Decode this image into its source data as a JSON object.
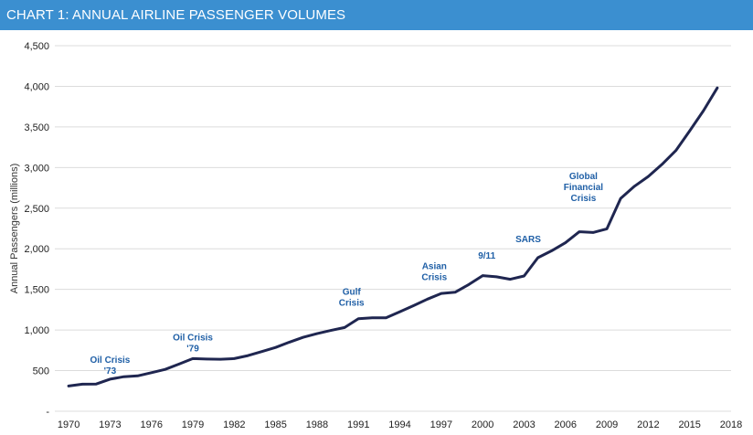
{
  "header": {
    "title": "CHART 1: ANNUAL AIRLINE PASSENGER VOLUMES"
  },
  "colors": {
    "accent": "#3b8fd0",
    "line": "#1f2650",
    "annotation": "#1f5fa6",
    "grid": "#dcdcdc"
  },
  "chart_data": {
    "type": "line",
    "title": "CHART 1: ANNUAL AIRLINE PASSENGER VOLUMES",
    "xlabel": "",
    "ylabel": "Annual Passengers (millions)",
    "xlim": [
      1969,
      2018
    ],
    "ylim": [
      0,
      4500
    ],
    "grid": true,
    "x_ticks": [
      1970,
      1973,
      1976,
      1979,
      1982,
      1985,
      1988,
      1991,
      1994,
      1997,
      2000,
      2003,
      2006,
      2009,
      2012,
      2015,
      2018
    ],
    "y_ticks": [
      {
        "value": 0,
        "label": "-"
      },
      {
        "value": 500,
        "label": "500"
      },
      {
        "value": 1000,
        "label": "1,000"
      },
      {
        "value": 1500,
        "label": "1,500"
      },
      {
        "value": 2000,
        "label": "2,000"
      },
      {
        "value": 2500,
        "label": "2,500"
      },
      {
        "value": 3000,
        "label": "3,000"
      },
      {
        "value": 3500,
        "label": "3,500"
      },
      {
        "value": 4000,
        "label": "4,000"
      },
      {
        "value": 4500,
        "label": "4,500"
      }
    ],
    "series": [
      {
        "x": [
          1970,
          1971,
          1972,
          1973,
          1974,
          1975,
          1976,
          1977,
          1978,
          1979,
          1980,
          1981,
          1982,
          1983,
          1984,
          1985,
          1986,
          1987,
          1988,
          1989,
          1990,
          1991,
          1992,
          1993,
          1994,
          1995,
          1996,
          1997,
          1998,
          1999,
          2000,
          2001,
          2002,
          2003,
          2004,
          2005,
          2006,
          2007,
          2008,
          2009,
          2010,
          2011,
          2012,
          2013,
          2014,
          2015,
          2016,
          2017
        ],
        "y": [
          310,
          333,
          335,
          395,
          425,
          435,
          475,
          515,
          580,
          648,
          642,
          640,
          648,
          685,
          735,
          785,
          850,
          910,
          955,
          995,
          1030,
          1140,
          1150,
          1150,
          1225,
          1300,
          1380,
          1450,
          1465,
          1560,
          1670,
          1655,
          1625,
          1665,
          1890,
          1975,
          2075,
          2210,
          2200,
          2245,
          2620,
          2770,
          2890,
          3040,
          3210,
          3450,
          3700,
          3980
        ]
      }
    ],
    "annotations": [
      {
        "lines": [
          "Oil Crisis",
          "'73"
        ],
        "x": 1973,
        "y": 460
      },
      {
        "lines": [
          "Oil Crisis",
          "'79"
        ],
        "x": 1979,
        "y": 735
      },
      {
        "lines": [
          "Gulf",
          "Crisis"
        ],
        "x": 1990.5,
        "y": 1300
      },
      {
        "lines": [
          "Asian",
          "Crisis"
        ],
        "x": 1996.5,
        "y": 1615
      },
      {
        "lines": [
          "9/11"
        ],
        "x": 2000.3,
        "y": 1880
      },
      {
        "lines": [
          "SARS"
        ],
        "x": 2003.3,
        "y": 2080
      },
      {
        "lines": [
          "Global",
          "Financial",
          "Crisis"
        ],
        "x": 2007.3,
        "y": 2585
      }
    ]
  }
}
